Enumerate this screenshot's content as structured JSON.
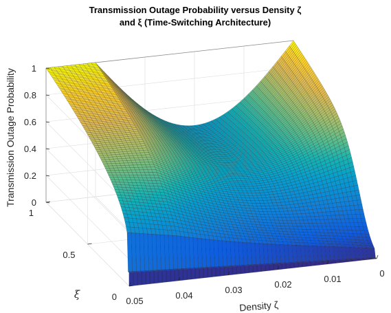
{
  "chart_data": {
    "type": "surface",
    "title_line1": "Transmission Outage Probability versus Density ζ",
    "title_line2": "and ξ (Time-Switching Architecture)",
    "xlabel": "Density ζ",
    "ylabel": "ξ",
    "zlabel": "Transmission Outage Probability",
    "xlim": [
      0,
      0.05
    ],
    "ylim": [
      0,
      1
    ],
    "zlim": [
      0,
      1
    ],
    "x_ticks": [
      "0",
      "0.01",
      "0.02",
      "0.03",
      "0.04",
      "0.05"
    ],
    "y_ticks": [
      "0",
      "0.5",
      "1"
    ],
    "z_ticks": [
      "0",
      "0.2",
      "0.4",
      "0.6",
      "0.8",
      "1"
    ],
    "grid": true,
    "colormap": "parula",
    "mesh_resolution": {
      "density": 60,
      "xi": 80
    },
    "sample_points": [
      {
        "density": 0.05,
        "xi": 0,
        "outage": 0.1
      },
      {
        "density": 0.05,
        "xi": 1,
        "outage": 1.0
      },
      {
        "density": 0.0,
        "xi": 0,
        "outage": 0.0
      },
      {
        "density": 0.0,
        "xi": 1,
        "outage": 1.0
      },
      {
        "density": 0.025,
        "xi": 0.5,
        "outage": 0.35
      }
    ]
  }
}
